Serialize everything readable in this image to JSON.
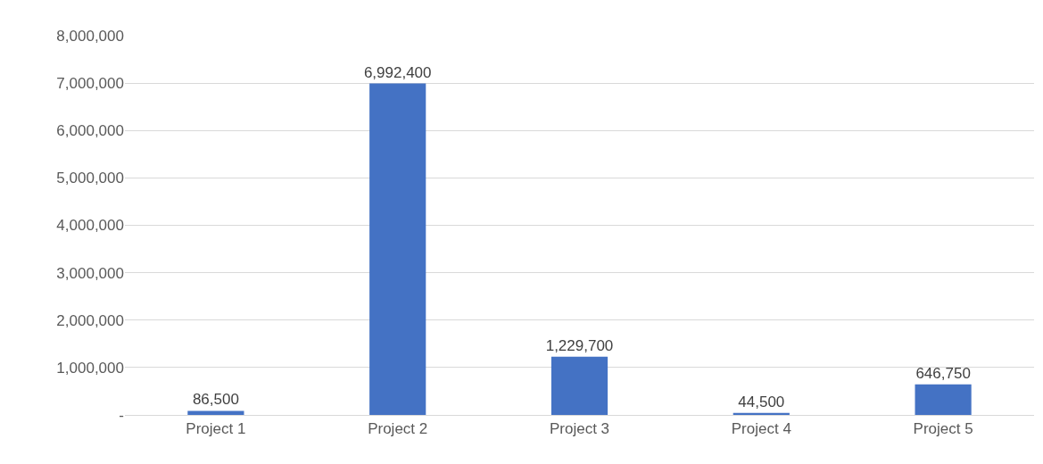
{
  "chart_data": {
    "type": "bar",
    "categories": [
      "Project 1",
      "Project 2",
      "Project 3",
      "Project 4",
      "Project 5"
    ],
    "values": [
      86500,
      6992400,
      1229700,
      44500,
      646750
    ],
    "color": "#4472c4",
    "ylim": [
      0,
      8000000
    ],
    "yticks": [
      {
        "value": 0,
        "label": "-"
      },
      {
        "value": 1000000,
        "label": "1,000,000"
      },
      {
        "value": 2000000,
        "label": "2,000,000"
      },
      {
        "value": 3000000,
        "label": "3,000,000"
      },
      {
        "value": 4000000,
        "label": "4,000,000"
      },
      {
        "value": 5000000,
        "label": "5,000,000"
      },
      {
        "value": 6000000,
        "label": "6,000,000"
      },
      {
        "value": 7000000,
        "label": "7,000,000"
      },
      {
        "value": 8000000,
        "label": "8,000,000"
      }
    ],
    "grid": "y",
    "value_labels": [
      "86,500",
      "6,992,400",
      "1,229,700",
      "44,500",
      "646,750"
    ]
  }
}
